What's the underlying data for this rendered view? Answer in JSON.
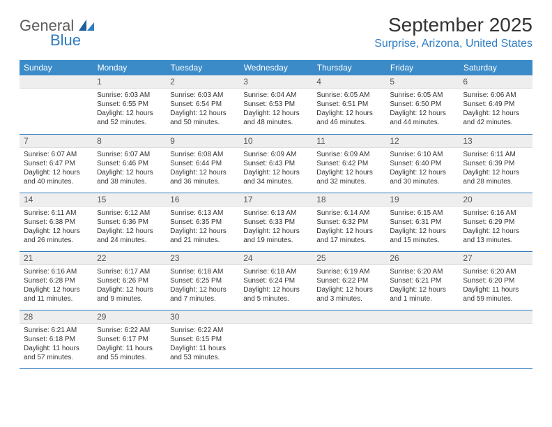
{
  "logo": {
    "general": "General",
    "blue": "Blue"
  },
  "title": "September 2025",
  "location": "Surprise, Arizona, United States",
  "colors": {
    "header_bg": "#3b8bc9",
    "header_text": "#ffffff",
    "accent": "#2f7cc0",
    "daynum_bg": "#eeeeee",
    "body_text": "#333333",
    "logo_gray": "#5b5b5b"
  },
  "weekdays": [
    "Sunday",
    "Monday",
    "Tuesday",
    "Wednesday",
    "Thursday",
    "Friday",
    "Saturday"
  ],
  "weeks": [
    [
      null,
      {
        "n": "1",
        "sr": "Sunrise: 6:03 AM",
        "ss": "Sunset: 6:55 PM",
        "dl": "Daylight: 12 hours and 52 minutes."
      },
      {
        "n": "2",
        "sr": "Sunrise: 6:03 AM",
        "ss": "Sunset: 6:54 PM",
        "dl": "Daylight: 12 hours and 50 minutes."
      },
      {
        "n": "3",
        "sr": "Sunrise: 6:04 AM",
        "ss": "Sunset: 6:53 PM",
        "dl": "Daylight: 12 hours and 48 minutes."
      },
      {
        "n": "4",
        "sr": "Sunrise: 6:05 AM",
        "ss": "Sunset: 6:51 PM",
        "dl": "Daylight: 12 hours and 46 minutes."
      },
      {
        "n": "5",
        "sr": "Sunrise: 6:05 AM",
        "ss": "Sunset: 6:50 PM",
        "dl": "Daylight: 12 hours and 44 minutes."
      },
      {
        "n": "6",
        "sr": "Sunrise: 6:06 AM",
        "ss": "Sunset: 6:49 PM",
        "dl": "Daylight: 12 hours and 42 minutes."
      }
    ],
    [
      {
        "n": "7",
        "sr": "Sunrise: 6:07 AM",
        "ss": "Sunset: 6:47 PM",
        "dl": "Daylight: 12 hours and 40 minutes."
      },
      {
        "n": "8",
        "sr": "Sunrise: 6:07 AM",
        "ss": "Sunset: 6:46 PM",
        "dl": "Daylight: 12 hours and 38 minutes."
      },
      {
        "n": "9",
        "sr": "Sunrise: 6:08 AM",
        "ss": "Sunset: 6:44 PM",
        "dl": "Daylight: 12 hours and 36 minutes."
      },
      {
        "n": "10",
        "sr": "Sunrise: 6:09 AM",
        "ss": "Sunset: 6:43 PM",
        "dl": "Daylight: 12 hours and 34 minutes."
      },
      {
        "n": "11",
        "sr": "Sunrise: 6:09 AM",
        "ss": "Sunset: 6:42 PM",
        "dl": "Daylight: 12 hours and 32 minutes."
      },
      {
        "n": "12",
        "sr": "Sunrise: 6:10 AM",
        "ss": "Sunset: 6:40 PM",
        "dl": "Daylight: 12 hours and 30 minutes."
      },
      {
        "n": "13",
        "sr": "Sunrise: 6:11 AM",
        "ss": "Sunset: 6:39 PM",
        "dl": "Daylight: 12 hours and 28 minutes."
      }
    ],
    [
      {
        "n": "14",
        "sr": "Sunrise: 6:11 AM",
        "ss": "Sunset: 6:38 PM",
        "dl": "Daylight: 12 hours and 26 minutes."
      },
      {
        "n": "15",
        "sr": "Sunrise: 6:12 AM",
        "ss": "Sunset: 6:36 PM",
        "dl": "Daylight: 12 hours and 24 minutes."
      },
      {
        "n": "16",
        "sr": "Sunrise: 6:13 AM",
        "ss": "Sunset: 6:35 PM",
        "dl": "Daylight: 12 hours and 21 minutes."
      },
      {
        "n": "17",
        "sr": "Sunrise: 6:13 AM",
        "ss": "Sunset: 6:33 PM",
        "dl": "Daylight: 12 hours and 19 minutes."
      },
      {
        "n": "18",
        "sr": "Sunrise: 6:14 AM",
        "ss": "Sunset: 6:32 PM",
        "dl": "Daylight: 12 hours and 17 minutes."
      },
      {
        "n": "19",
        "sr": "Sunrise: 6:15 AM",
        "ss": "Sunset: 6:31 PM",
        "dl": "Daylight: 12 hours and 15 minutes."
      },
      {
        "n": "20",
        "sr": "Sunrise: 6:16 AM",
        "ss": "Sunset: 6:29 PM",
        "dl": "Daylight: 12 hours and 13 minutes."
      }
    ],
    [
      {
        "n": "21",
        "sr": "Sunrise: 6:16 AM",
        "ss": "Sunset: 6:28 PM",
        "dl": "Daylight: 12 hours and 11 minutes."
      },
      {
        "n": "22",
        "sr": "Sunrise: 6:17 AM",
        "ss": "Sunset: 6:26 PM",
        "dl": "Daylight: 12 hours and 9 minutes."
      },
      {
        "n": "23",
        "sr": "Sunrise: 6:18 AM",
        "ss": "Sunset: 6:25 PM",
        "dl": "Daylight: 12 hours and 7 minutes."
      },
      {
        "n": "24",
        "sr": "Sunrise: 6:18 AM",
        "ss": "Sunset: 6:24 PM",
        "dl": "Daylight: 12 hours and 5 minutes."
      },
      {
        "n": "25",
        "sr": "Sunrise: 6:19 AM",
        "ss": "Sunset: 6:22 PM",
        "dl": "Daylight: 12 hours and 3 minutes."
      },
      {
        "n": "26",
        "sr": "Sunrise: 6:20 AM",
        "ss": "Sunset: 6:21 PM",
        "dl": "Daylight: 12 hours and 1 minute."
      },
      {
        "n": "27",
        "sr": "Sunrise: 6:20 AM",
        "ss": "Sunset: 6:20 PM",
        "dl": "Daylight: 11 hours and 59 minutes."
      }
    ],
    [
      {
        "n": "28",
        "sr": "Sunrise: 6:21 AM",
        "ss": "Sunset: 6:18 PM",
        "dl": "Daylight: 11 hours and 57 minutes."
      },
      {
        "n": "29",
        "sr": "Sunrise: 6:22 AM",
        "ss": "Sunset: 6:17 PM",
        "dl": "Daylight: 11 hours and 55 minutes."
      },
      {
        "n": "30",
        "sr": "Sunrise: 6:22 AM",
        "ss": "Sunset: 6:15 PM",
        "dl": "Daylight: 11 hours and 53 minutes."
      },
      null,
      null,
      null,
      null
    ]
  ]
}
